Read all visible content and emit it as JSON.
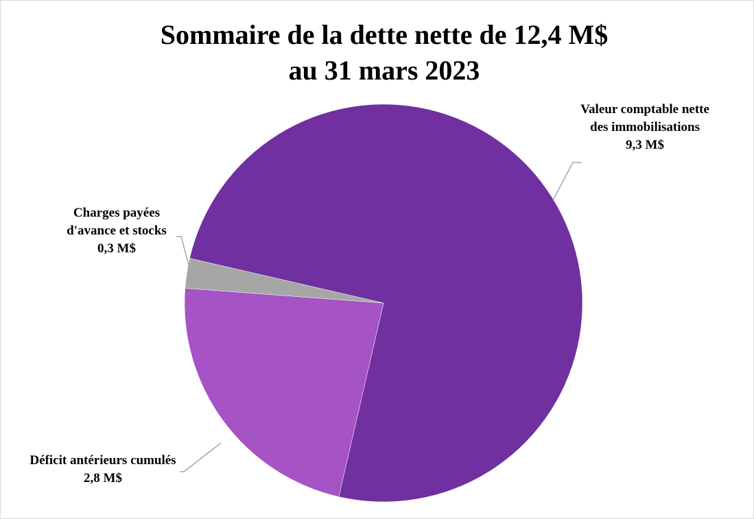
{
  "chart_data": {
    "type": "pie",
    "title": [
      "Sommaire de la dette nette de 12,4 M$",
      "au 31 mars 2023"
    ],
    "categories": [
      "Valeur comptable nette des immobilisations",
      "Déficit antérieurs cumulés",
      "Charges payées d'avance et stocks"
    ],
    "values": [
      9.3,
      2.8,
      0.3
    ],
    "value_labels": [
      "9,3 M$",
      "2,8 M$",
      "0,3 M$"
    ],
    "colors": [
      "#7030a0",
      "#a553c5",
      "#a6a6a6"
    ]
  }
}
